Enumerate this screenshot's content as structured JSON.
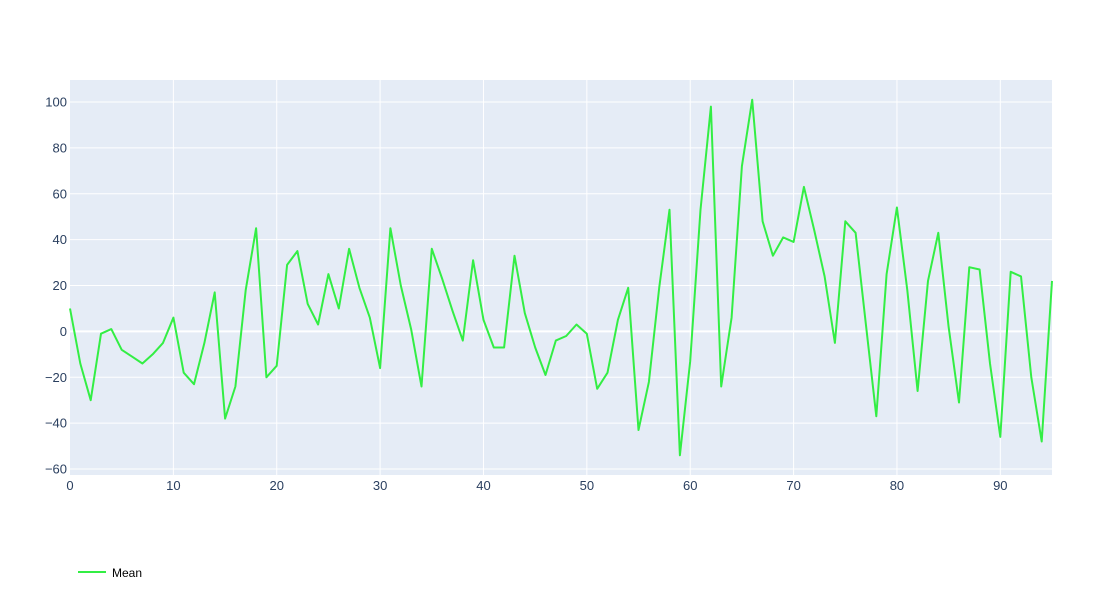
{
  "chart_data": {
    "type": "line",
    "title": "",
    "xlabel": "",
    "ylabel": "",
    "xlim": [
      0,
      95
    ],
    "ylim": [
      -62.6,
      109.6
    ],
    "xticks": [
      0,
      10,
      20,
      30,
      40,
      50,
      60,
      70,
      80,
      90
    ],
    "yticks": [
      -60,
      -40,
      -20,
      0,
      20,
      40,
      60,
      80,
      100
    ],
    "grid": true,
    "legend_position": "bottom-left",
    "plot_background": "#e5ecf6",
    "series": [
      {
        "name": "Mean",
        "color": "#33ee44",
        "x": [
          0,
          1,
          2,
          3,
          4,
          5,
          6,
          7,
          8,
          9,
          10,
          11,
          12,
          13,
          14,
          15,
          16,
          17,
          18,
          19,
          20,
          21,
          22,
          23,
          24,
          25,
          26,
          27,
          28,
          29,
          30,
          31,
          32,
          33,
          34,
          35,
          36,
          37,
          38,
          39,
          40,
          41,
          42,
          43,
          44,
          45,
          46,
          47,
          48,
          49,
          50,
          51,
          52,
          53,
          54,
          55,
          56,
          57,
          58,
          59,
          60,
          61,
          62,
          63,
          64,
          65,
          66,
          67,
          68,
          69,
          70,
          71,
          72,
          73,
          74,
          75,
          76,
          77,
          78,
          79,
          80,
          81,
          82,
          83,
          84,
          85,
          86,
          87,
          88,
          89,
          90,
          91,
          92,
          93,
          94,
          95
        ],
        "y": [
          10,
          -14,
          -30,
          -1,
          1,
          -8,
          -11,
          -14,
          -10,
          -5,
          6,
          -18,
          -23,
          -5,
          17,
          -38,
          -24,
          18,
          45,
          -20,
          -15,
          29,
          35,
          12,
          3,
          25,
          10,
          36,
          19,
          6,
          -16,
          45,
          20,
          1,
          -24,
          36,
          23,
          9,
          -4,
          31,
          5,
          -7,
          -7,
          33,
          8,
          -7,
          -19,
          -4,
          -2,
          3,
          -1,
          -25,
          -18,
          5,
          19,
          -43,
          -22,
          19,
          53,
          -54,
          -13,
          53,
          98,
          -24,
          6,
          72,
          101,
          48,
          33,
          41,
          39,
          63,
          44,
          24,
          -5,
          48,
          43,
          3,
          -37,
          25,
          54,
          18,
          -26,
          22,
          43,
          2,
          -31,
          28,
          27,
          -14,
          -46,
          26,
          24,
          -20,
          -48,
          22
        ]
      }
    ]
  }
}
